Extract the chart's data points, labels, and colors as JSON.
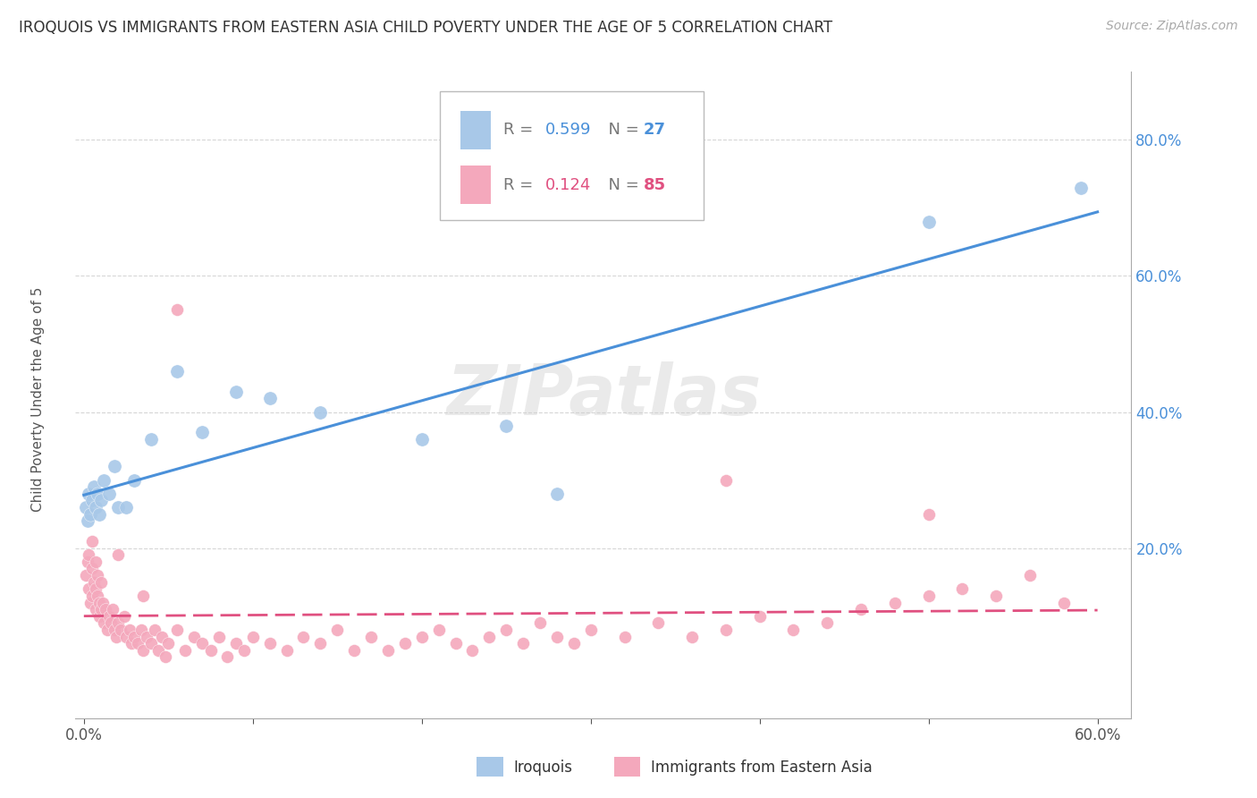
{
  "title": "IROQUOIS VS IMMIGRANTS FROM EASTERN ASIA CHILD POVERTY UNDER THE AGE OF 5 CORRELATION CHART",
  "source": "Source: ZipAtlas.com",
  "ylabel": "Child Poverty Under the Age of 5",
  "legend1_label": "Iroquois",
  "legend2_label": "Immigrants from Eastern Asia",
  "r_iroquois": 0.599,
  "n_iroquois": 27,
  "r_eastern_asia": 0.124,
  "n_eastern_asia": 85,
  "blue_color": "#a8c8e8",
  "pink_color": "#f4a8bc",
  "blue_line_color": "#4a90d9",
  "pink_line_color": "#e05080",
  "ytick_labels": [
    "20.0%",
    "40.0%",
    "60.0%",
    "80.0%"
  ],
  "ytick_values": [
    0.2,
    0.4,
    0.6,
    0.8
  ],
  "xlim": [
    -0.005,
    0.62
  ],
  "ylim": [
    -0.05,
    0.9
  ],
  "iroquois_x": [
    0.001,
    0.002,
    0.003,
    0.004,
    0.005,
    0.006,
    0.007,
    0.008,
    0.009,
    0.01,
    0.012,
    0.015,
    0.018,
    0.02,
    0.025,
    0.03,
    0.04,
    0.055,
    0.07,
    0.09,
    0.11,
    0.14,
    0.2,
    0.25,
    0.28,
    0.5,
    0.59
  ],
  "iroquois_y": [
    0.26,
    0.24,
    0.28,
    0.25,
    0.27,
    0.29,
    0.26,
    0.28,
    0.25,
    0.27,
    0.3,
    0.28,
    0.32,
    0.26,
    0.26,
    0.3,
    0.36,
    0.46,
    0.37,
    0.43,
    0.42,
    0.4,
    0.36,
    0.38,
    0.28,
    0.68,
    0.73
  ],
  "eastern_x": [
    0.001,
    0.002,
    0.003,
    0.004,
    0.005,
    0.005,
    0.006,
    0.007,
    0.007,
    0.008,
    0.008,
    0.009,
    0.009,
    0.01,
    0.01,
    0.011,
    0.012,
    0.013,
    0.014,
    0.015,
    0.016,
    0.017,
    0.018,
    0.019,
    0.02,
    0.022,
    0.024,
    0.025,
    0.027,
    0.028,
    0.03,
    0.032,
    0.034,
    0.035,
    0.037,
    0.04,
    0.042,
    0.044,
    0.046,
    0.048,
    0.05,
    0.055,
    0.06,
    0.065,
    0.07,
    0.075,
    0.08,
    0.085,
    0.09,
    0.095,
    0.1,
    0.11,
    0.12,
    0.13,
    0.14,
    0.15,
    0.16,
    0.17,
    0.18,
    0.19,
    0.2,
    0.21,
    0.22,
    0.23,
    0.24,
    0.25,
    0.26,
    0.27,
    0.28,
    0.29,
    0.3,
    0.32,
    0.34,
    0.36,
    0.38,
    0.4,
    0.42,
    0.44,
    0.46,
    0.48,
    0.5,
    0.52,
    0.54,
    0.56,
    0.58
  ],
  "eastern_y": [
    0.16,
    0.18,
    0.14,
    0.12,
    0.17,
    0.13,
    0.15,
    0.11,
    0.14,
    0.13,
    0.16,
    0.12,
    0.1,
    0.15,
    0.11,
    0.12,
    0.09,
    0.11,
    0.08,
    0.1,
    0.09,
    0.11,
    0.08,
    0.07,
    0.09,
    0.08,
    0.1,
    0.07,
    0.08,
    0.06,
    0.07,
    0.06,
    0.08,
    0.05,
    0.07,
    0.06,
    0.08,
    0.05,
    0.07,
    0.04,
    0.06,
    0.08,
    0.05,
    0.07,
    0.06,
    0.05,
    0.07,
    0.04,
    0.06,
    0.05,
    0.07,
    0.06,
    0.05,
    0.07,
    0.06,
    0.08,
    0.05,
    0.07,
    0.05,
    0.06,
    0.07,
    0.08,
    0.06,
    0.05,
    0.07,
    0.08,
    0.06,
    0.09,
    0.07,
    0.06,
    0.08,
    0.07,
    0.09,
    0.07,
    0.08,
    0.1,
    0.08,
    0.09,
    0.11,
    0.12,
    0.13,
    0.14,
    0.13,
    0.16,
    0.12
  ],
  "eastern_extra_x": [
    0.003,
    0.005,
    0.007,
    0.02,
    0.035,
    0.055,
    0.38,
    0.5
  ],
  "eastern_extra_y": [
    0.19,
    0.21,
    0.18,
    0.19,
    0.13,
    0.55,
    0.3,
    0.25
  ]
}
